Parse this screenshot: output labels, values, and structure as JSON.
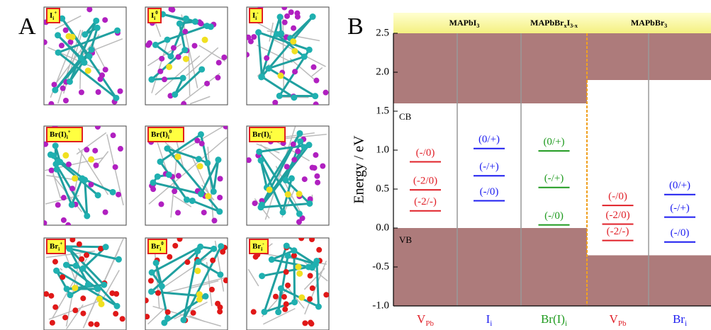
{
  "panel_a": {
    "label": "A",
    "structures": [
      {
        "base": "I",
        "sub": "i",
        "sup": "+"
      },
      {
        "base": "I",
        "sub": "i",
        "sup": "0"
      },
      {
        "base": "I",
        "sub": "i",
        "sup": "-"
      },
      {
        "base": "Br(I)",
        "sub": "i",
        "sup": "+"
      },
      {
        "base": "Br(I)",
        "sub": "i",
        "sup": "0"
      },
      {
        "base": "Br(I)",
        "sub": "i",
        "sup": "-"
      },
      {
        "base": "Br",
        "sub": "i",
        "sup": "+"
      },
      {
        "base": "Br",
        "sub": "i",
        "sup": "0"
      },
      {
        "base": "Br",
        "sub": "i",
        "sup": "-"
      }
    ]
  },
  "chart_data": {
    "type": "level",
    "panel_label": "B",
    "y_label": "Energy / eV",
    "ylim": [
      -1.0,
      2.5
    ],
    "yticks": [
      {
        "value": -1.0,
        "label": "-1.0"
      },
      -0.5,
      {
        "value": 0.0,
        "label": "0.0"
      },
      0.5,
      {
        "value": 1.0,
        "label": "1.0"
      },
      1.5,
      {
        "value": 2.0,
        "label": "2.0"
      },
      2.5
    ],
    "band_labels": {
      "cb": "CB",
      "vb": "VB"
    },
    "groups": [
      {
        "segments": [
          {
            "t": "MAPbI"
          },
          {
            "t": "3",
            "sub": true
          }
        ],
        "cb": 1.6,
        "vb": 0.0
      },
      {
        "segments": [
          {
            "t": "MAPbBr"
          },
          {
            "t": "x",
            "sub": true
          },
          {
            "t": "I"
          },
          {
            "t": "3-x",
            "sub": true
          }
        ]
      },
      {
        "segments": [
          {
            "t": "MAPbBr"
          },
          {
            "t": "3",
            "sub": true
          }
        ],
        "cb": 1.9,
        "vb": -0.35
      }
    ],
    "series": [
      {
        "name": "V",
        "name_sub": "Pb",
        "color": "#e02028",
        "labels": [
          "(-/0)",
          "(-2/0)",
          "(-2/-)"
        ],
        "values": [
          0.85,
          0.49,
          0.22
        ]
      },
      {
        "name": "I",
        "name_sub": "i",
        "color": "#1c1cf0",
        "labels": [
          "(0/+)",
          "(-/+)",
          "(-/0)"
        ],
        "values": [
          1.02,
          0.67,
          0.35
        ]
      },
      {
        "name": "Br(I)",
        "name_sub": "i",
        "color": "#1e9a1e",
        "labels": [
          "(0/+)",
          "(-/+)",
          "(-/0)"
        ],
        "values": [
          0.99,
          0.52,
          0.04
        ]
      },
      {
        "name": "V",
        "name_sub": "Pb",
        "color": "#e02028",
        "labels": [
          "(-/0)",
          "(-2/0)",
          "(-2/-)"
        ],
        "values": [
          0.29,
          0.05,
          -0.16
        ]
      },
      {
        "name": "Br",
        "name_sub": "i",
        "color": "#1c1cf0",
        "labels": [
          "(0/+)",
          "(-/+)",
          "(-/0)"
        ],
        "values": [
          0.43,
          0.14,
          -0.18
        ]
      }
    ]
  }
}
